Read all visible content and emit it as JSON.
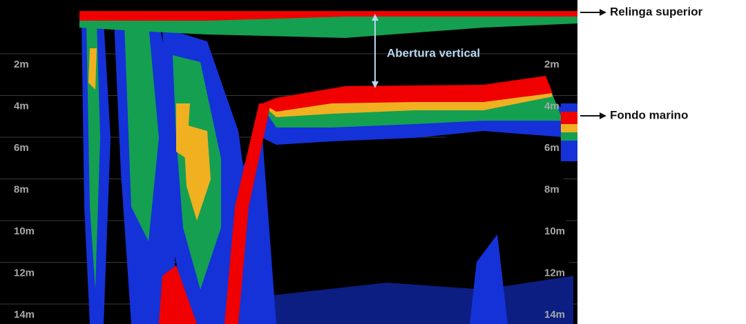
{
  "annotations": {
    "top_rope": "Relinga superior",
    "seabed": "Fondo marino",
    "vertical_opening": "Abertura vertical"
  },
  "depth_labels": [
    "2m",
    "4m",
    "6m",
    "8m",
    "10m",
    "12m",
    "14m"
  ]
}
